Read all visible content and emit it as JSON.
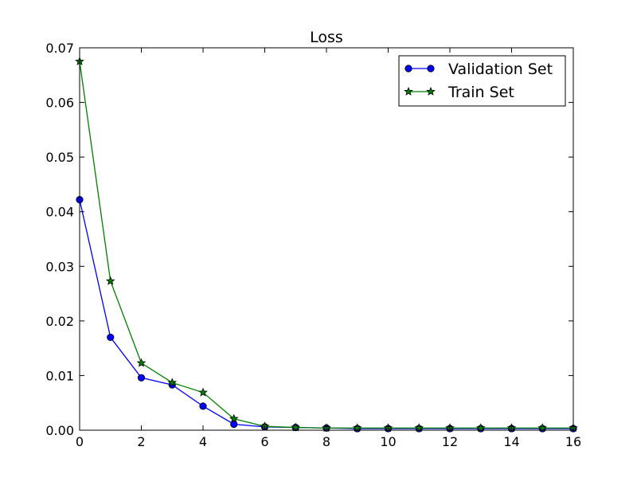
{
  "chart_data": {
    "type": "line",
    "title": "Loss",
    "xlabel": "",
    "ylabel": "",
    "xlim": [
      0,
      16
    ],
    "ylim": [
      0,
      0.07
    ],
    "x_ticks": [
      "0",
      "2",
      "4",
      "6",
      "8",
      "10",
      "12",
      "14",
      "16"
    ],
    "y_ticks": [
      "0.00",
      "0.01",
      "0.02",
      "0.03",
      "0.04",
      "0.05",
      "0.06",
      "0.07"
    ],
    "grid": false,
    "legend_position": "top-right",
    "x": [
      0,
      1,
      2,
      3,
      4,
      5,
      6,
      7,
      8,
      9,
      10,
      11,
      12,
      13,
      14,
      15,
      16
    ],
    "series": [
      {
        "name": "Validation Set",
        "color": "#0000ff",
        "marker": "circle",
        "values": [
          0.0422,
          0.017,
          0.0096,
          0.0083,
          0.0044,
          0.0011,
          0.0006,
          0.0005,
          0.0004,
          0.0003,
          0.0003,
          0.0003,
          0.0003,
          0.0003,
          0.0003,
          0.0003,
          0.0003
        ]
      },
      {
        "name": "Train Set",
        "color": "#008000",
        "marker": "star",
        "values": [
          0.0675,
          0.0273,
          0.0123,
          0.0087,
          0.0069,
          0.0021,
          0.0007,
          0.0005,
          0.0004,
          0.0004,
          0.0004,
          0.0004,
          0.0004,
          0.0004,
          0.0004,
          0.0004,
          0.0004
        ]
      }
    ]
  }
}
